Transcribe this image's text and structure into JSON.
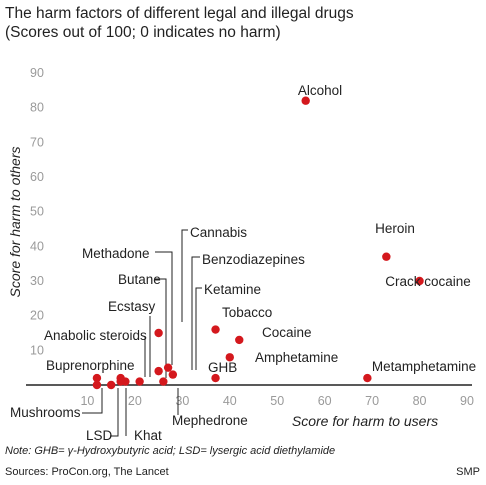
{
  "title": "The harm factors of different legal and illegal drugs",
  "subtitle": "(Scores out of 100; 0 indicates no harm)",
  "note": "Note: GHB= γ-Hydroxybutyric acid; LSD= lysergic acid diethylamide",
  "sources": "Sources: ProCon.org, The Lancet",
  "credit": "SMP",
  "colors": {
    "point": "#d4181d",
    "axis": "#222222",
    "tick": "#9a9a9a",
    "text": "#222222"
  },
  "chart_data": {
    "type": "scatter",
    "xlabel": "Score for harm to users",
    "ylabel": "Score for harm to others",
    "xlim": [
      0,
      90
    ],
    "ylim": [
      0,
      90
    ],
    "x_ticks": [
      "10",
      "20",
      "30",
      "40",
      "50",
      "60",
      "70",
      "80",
      "90"
    ],
    "y_ticks": [
      "10",
      "20",
      "30",
      "40",
      "50",
      "60",
      "70",
      "80",
      "90"
    ],
    "grid": false,
    "points": [
      {
        "label": "Alcohol",
        "x": 56,
        "y": 82
      },
      {
        "label": "Heroin",
        "x": 73,
        "y": 37
      },
      {
        "label": "Crack cocaine",
        "x": 80,
        "y": 30
      },
      {
        "label": "Metamphetamine",
        "x": 69,
        "y": 2
      },
      {
        "label": "Cannabis",
        "x": 25,
        "y": 15
      },
      {
        "label": "Tobacco",
        "x": 37,
        "y": 16
      },
      {
        "label": "Cocaine",
        "x": 42,
        "y": 13
      },
      {
        "label": "Amphetamine",
        "x": 40,
        "y": 8
      },
      {
        "label": "GHB",
        "x": 37,
        "y": 2
      },
      {
        "label": "Ketamine",
        "x": 28,
        "y": 3
      },
      {
        "label": "Benzodiazepines",
        "x": 27,
        "y": 5
      },
      {
        "label": "Methadone",
        "x": 25,
        "y": 4
      },
      {
        "label": "Mephedrone",
        "x": 26,
        "y": 1
      },
      {
        "label": "Butane",
        "x": 21,
        "y": 1
      },
      {
        "label": "Ecstasy",
        "x": 18,
        "y": 1
      },
      {
        "label": "Anabolic steroids",
        "x": 17,
        "y": 2
      },
      {
        "label": "Buprenorphine",
        "x": 12,
        "y": 2
      },
      {
        "label": "Mushrooms",
        "x": 12,
        "y": 0
      },
      {
        "label": "LSD",
        "x": 15,
        "y": 0
      },
      {
        "label": "Khat",
        "x": 17,
        "y": 1
      }
    ]
  }
}
